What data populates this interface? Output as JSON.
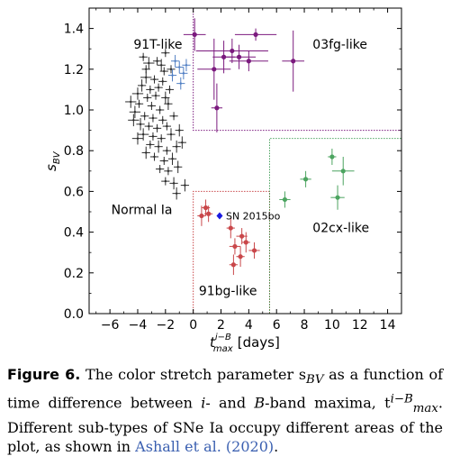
{
  "chart_data": {
    "type": "scatter",
    "xlabel_base": "t",
    "xlabel_sup": "i−B",
    "xlabel_sub": "max",
    "xlabel_unit": "[days]",
    "ylabel_base": "s",
    "ylabel_sub": "BV",
    "xlim": [
      -7.5,
      15
    ],
    "ylim": [
      0.0,
      1.5
    ],
    "xticks": [
      -6,
      -4,
      -2,
      0,
      2,
      4,
      6,
      8,
      10,
      12,
      14
    ],
    "xtick_labels": [
      "−6",
      "−4",
      "−2",
      "0",
      "2",
      "4",
      "6",
      "8",
      "10",
      "12",
      "14"
    ],
    "yticks": [
      0.0,
      0.2,
      0.4,
      0.6,
      0.8,
      1.0,
      1.2,
      1.4
    ],
    "ytick_labels": [
      "0.0",
      "0.2",
      "0.4",
      "0.6",
      "0.8",
      "1.0",
      "1.2",
      "1.4"
    ],
    "regions": [
      {
        "label": "91T-like",
        "color": "#4f7ec3",
        "label_x": -4.3,
        "label_y": 1.3
      },
      {
        "label": "03fg-like",
        "color": "#7b1a7e",
        "label_x": 8.6,
        "label_y": 1.3
      },
      {
        "label": "Normal Ia",
        "color": "#000000",
        "label_x": -5.9,
        "label_y": 0.49
      },
      {
        "label": "02cx-like",
        "color": "#4ca460",
        "label_x": 8.6,
        "label_y": 0.4
      },
      {
        "label": "91bg-like",
        "color": "#c9474a",
        "label_x": 0.4,
        "label_y": 0.09
      }
    ],
    "boundaries": [
      {
        "color": "#7b1a7e",
        "points": [
          [
            0,
            1.5
          ],
          [
            0,
            0.9
          ],
          [
            15,
            0.9
          ]
        ]
      },
      {
        "color": "#c9474a",
        "points": [
          [
            0,
            0.0
          ],
          [
            0,
            0.6
          ],
          [
            5.5,
            0.6
          ],
          [
            5.5,
            0.0
          ]
        ]
      },
      {
        "color": "#4ca460",
        "points": [
          [
            5.5,
            0.0
          ],
          [
            5.5,
            0.86
          ],
          [
            15,
            0.86
          ]
        ]
      }
    ],
    "annotation": {
      "text": "SN 2015bo",
      "color": "#1a1ae0",
      "x": 1.9,
      "y": 0.48,
      "marker": "diamond"
    },
    "series": [
      {
        "color": "#2b2b2b",
        "marker": "plus",
        "points": [
          [
            -3.6,
            1.26,
            0.3,
            0.02
          ],
          [
            -3.2,
            1.23,
            0.4,
            0.03
          ],
          [
            -2.6,
            1.24,
            0.3,
            0.02
          ],
          [
            -2.3,
            1.22,
            0.3,
            0.03
          ],
          [
            -2.1,
            1.19,
            0.3,
            0.02
          ],
          [
            -1.6,
            1.2,
            0.3,
            0.02
          ],
          [
            -3.4,
            1.16,
            0.4,
            0.03
          ],
          [
            -2.8,
            1.15,
            0.3,
            0.02
          ],
          [
            -2.2,
            1.14,
            0.3,
            0.02
          ],
          [
            -3.7,
            1.12,
            0.3,
            0.03
          ],
          [
            -3.1,
            1.1,
            0.3,
            0.02
          ],
          [
            -2.5,
            1.11,
            0.3,
            0.02
          ],
          [
            -4.0,
            1.08,
            0.4,
            0.03
          ],
          [
            -3.3,
            1.06,
            0.3,
            0.02
          ],
          [
            -2.7,
            1.07,
            0.3,
            0.02
          ],
          [
            -2.0,
            1.06,
            0.3,
            0.03
          ],
          [
            -3.9,
            1.03,
            0.3,
            0.02
          ],
          [
            -3.0,
            1.02,
            0.3,
            0.02
          ],
          [
            -2.4,
            1.0,
            0.3,
            0.02
          ],
          [
            -1.8,
            1.03,
            0.3,
            0.03
          ],
          [
            -4.2,
            0.99,
            0.4,
            0.03
          ],
          [
            -3.5,
            0.97,
            0.3,
            0.02
          ],
          [
            -2.9,
            0.96,
            0.3,
            0.02
          ],
          [
            -2.2,
            0.95,
            0.3,
            0.02
          ],
          [
            -3.8,
            0.93,
            0.3,
            0.03
          ],
          [
            -3.2,
            0.92,
            0.3,
            0.02
          ],
          [
            -2.6,
            0.91,
            0.3,
            0.02
          ],
          [
            -1.9,
            0.92,
            0.3,
            0.02
          ],
          [
            -3.6,
            0.88,
            0.4,
            0.03
          ],
          [
            -2.9,
            0.87,
            0.3,
            0.02
          ],
          [
            -2.3,
            0.86,
            0.3,
            0.02
          ],
          [
            -1.6,
            0.88,
            0.3,
            0.03
          ],
          [
            -3.1,
            0.83,
            0.3,
            0.02
          ],
          [
            -2.5,
            0.82,
            0.3,
            0.03
          ],
          [
            -1.9,
            0.8,
            0.3,
            0.02
          ],
          [
            -1.2,
            0.82,
            0.3,
            0.03
          ],
          [
            -2.8,
            0.77,
            0.3,
            0.02
          ],
          [
            -2.1,
            0.75,
            0.3,
            0.02
          ],
          [
            -1.5,
            0.76,
            0.3,
            0.03
          ],
          [
            -2.4,
            0.71,
            0.3,
            0.02
          ],
          [
            -1.8,
            0.7,
            0.3,
            0.02
          ],
          [
            -1.1,
            0.72,
            0.3,
            0.03
          ],
          [
            -2.0,
            0.65,
            0.3,
            0.02
          ],
          [
            -1.4,
            0.64,
            0.3,
            0.03
          ],
          [
            -0.6,
            0.63,
            0.3,
            0.03
          ],
          [
            -1.2,
            0.59,
            0.3,
            0.03
          ],
          [
            -4.5,
            1.04,
            0.4,
            0.03
          ],
          [
            -4.3,
            0.95,
            0.4,
            0.03
          ],
          [
            -4.0,
            0.86,
            0.4,
            0.03
          ],
          [
            -3.4,
            0.79,
            0.3,
            0.03
          ],
          [
            -1.7,
            1.1,
            0.3,
            0.02
          ],
          [
            -1.4,
            0.97,
            0.3,
            0.02
          ],
          [
            -1.0,
            0.9,
            0.3,
            0.03
          ],
          [
            -0.8,
            0.84,
            0.3,
            0.03
          ],
          [
            -2.0,
            1.28,
            0.3,
            0.02
          ],
          [
            -3.4,
            1.2,
            0.3,
            0.02
          ]
        ]
      },
      {
        "color": "#4f7ec3",
        "marker": "plus",
        "points": [
          [
            -1.3,
            1.24,
            0.3,
            0.03
          ],
          [
            -1.0,
            1.21,
            0.3,
            0.03
          ],
          [
            -0.7,
            1.18,
            0.3,
            0.03
          ],
          [
            -1.5,
            1.17,
            0.3,
            0.03
          ],
          [
            -0.9,
            1.13,
            0.3,
            0.03
          ],
          [
            -0.5,
            1.22,
            0.3,
            0.03
          ]
        ]
      },
      {
        "color": "#7b1a7e",
        "marker": "filled",
        "points": [
          [
            0.1,
            1.37,
            0.8,
            0.08
          ],
          [
            1.5,
            1.2,
            1.2,
            0.15
          ],
          [
            2.8,
            1.29,
            2.6,
            0.06
          ],
          [
            2.2,
            1.26,
            0.8,
            0.08
          ],
          [
            3.3,
            1.26,
            1.2,
            0.06
          ],
          [
            4.0,
            1.24,
            1.4,
            0.05
          ],
          [
            4.5,
            1.37,
            1.5,
            0.03
          ],
          [
            7.2,
            1.24,
            0.8,
            0.15
          ],
          [
            1.7,
            1.01,
            0.4,
            0.12
          ]
        ]
      },
      {
        "color": "#c9474a",
        "marker": "filled",
        "points": [
          [
            0.9,
            0.52,
            0.3,
            0.04
          ],
          [
            1.1,
            0.49,
            0.3,
            0.04
          ],
          [
            0.6,
            0.48,
            0.3,
            0.05
          ],
          [
            2.7,
            0.42,
            0.3,
            0.05
          ],
          [
            3.5,
            0.38,
            0.4,
            0.04
          ],
          [
            3.0,
            0.33,
            0.4,
            0.04
          ],
          [
            3.8,
            0.35,
            0.3,
            0.05
          ],
          [
            4.4,
            0.31,
            0.4,
            0.04
          ],
          [
            3.4,
            0.28,
            0.3,
            0.05
          ],
          [
            2.9,
            0.24,
            0.3,
            0.05
          ]
        ]
      },
      {
        "color": "#4ca460",
        "marker": "filled",
        "points": [
          [
            6.6,
            0.56,
            0.4,
            0.04
          ],
          [
            8.1,
            0.66,
            0.4,
            0.04
          ],
          [
            10.0,
            0.77,
            0.3,
            0.04
          ],
          [
            10.8,
            0.7,
            0.8,
            0.07
          ],
          [
            10.4,
            0.57,
            0.5,
            0.06
          ]
        ]
      }
    ]
  },
  "caption": {
    "fig_label": "Figure 6.",
    "text_1": " The color stretch parameter s",
    "sbv_sub": "BV",
    "text_2": " as a function of time difference between ",
    "i_band": "i",
    "text_3": "- and ",
    "b_band": "B",
    "text_4": "-band maxima, t",
    "tmax_sup": "i−B",
    "tmax_sub": "max",
    "text_5": ". Different sub-types of SNe Ia occupy different areas of the plot, as shown in ",
    "citation": "Ashall et al. (2020)",
    "text_6": "."
  }
}
